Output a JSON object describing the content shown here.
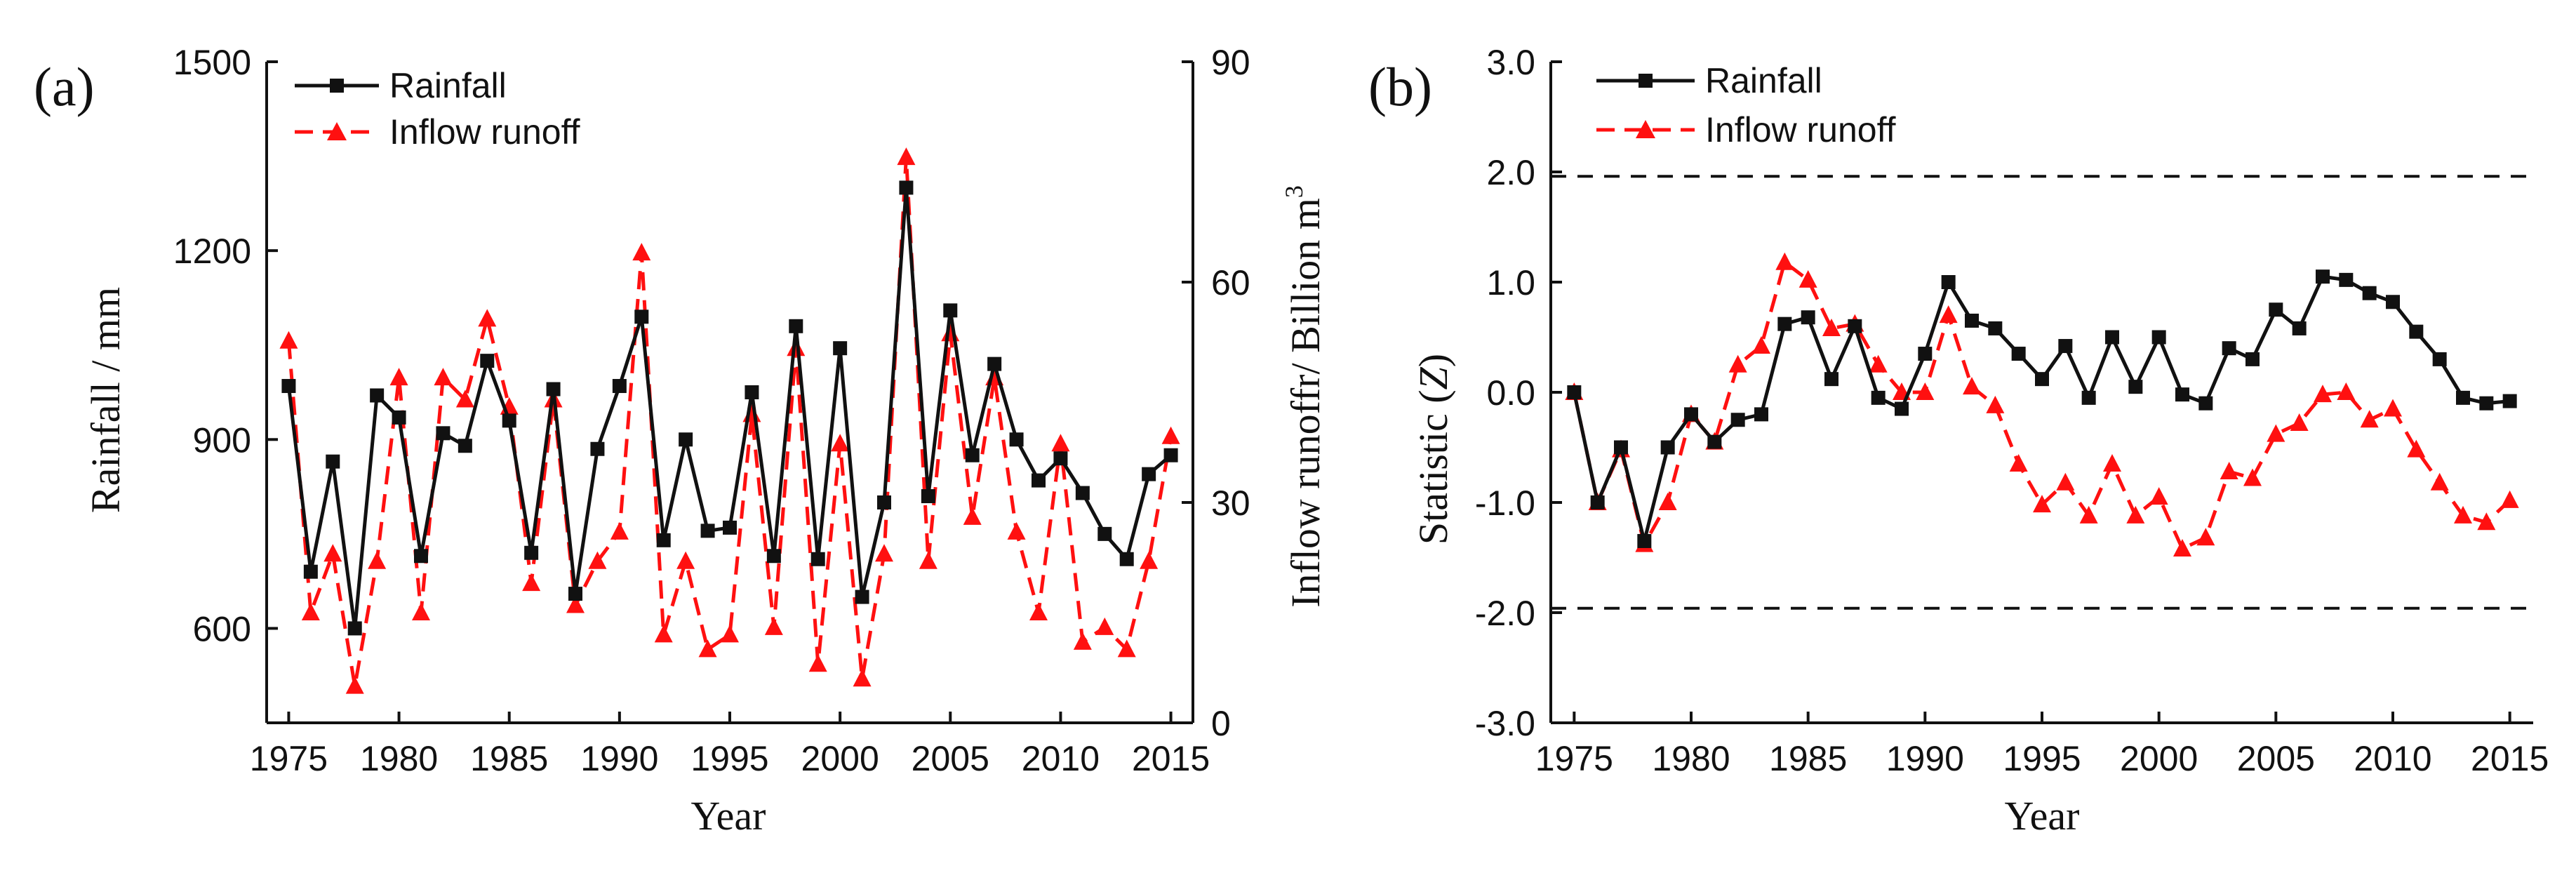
{
  "chart_data": [
    {
      "type": "line",
      "panel_label": "(a)",
      "xlabel": "Year",
      "ylabel": "Rainfall / mm",
      "y2label": "Inflow runoffr/ Billion m",
      "y2label_superscript": "3",
      "xlim": [
        1974,
        2016
      ],
      "ylim": [
        450,
        1500
      ],
      "y2lim": [
        0,
        90
      ],
      "xticks": [
        1975,
        1980,
        1985,
        1990,
        1995,
        2000,
        2005,
        2010,
        2015
      ],
      "yticks": [
        600,
        900,
        1200,
        1500
      ],
      "y2ticks": [
        0,
        30,
        60,
        90
      ],
      "legend": {
        "position": "top-left"
      },
      "grid": false,
      "x": [
        1975,
        1976,
        1977,
        1978,
        1979,
        1980,
        1981,
        1982,
        1983,
        1984,
        1985,
        1986,
        1987,
        1988,
        1989,
        1990,
        1991,
        1992,
        1993,
        1994,
        1995,
        1996,
        1997,
        1998,
        1999,
        2000,
        2001,
        2002,
        2003,
        2004,
        2005,
        2006,
        2007,
        2008,
        2009,
        2010,
        2011,
        2012,
        2013,
        2014,
        2015
      ],
      "series": [
        {
          "name": "Rainfall",
          "axis": "left",
          "color": "#111111",
          "marker": "square",
          "line": "solid",
          "values": [
            985,
            690,
            865,
            600,
            970,
            935,
            715,
            910,
            890,
            1025,
            930,
            720,
            980,
            655,
            885,
            985,
            1095,
            740,
            900,
            755,
            760,
            975,
            715,
            1080,
            710,
            1045,
            650,
            800,
            1300,
            810,
            1105,
            875,
            1020,
            900,
            835,
            870,
            815,
            750,
            710,
            845,
            875
          ]
        },
        {
          "name": "Inflow runoff",
          "axis": "right",
          "color": "#ff1010",
          "marker": "triangle",
          "line": "dashed",
          "values": [
            52,
            15,
            23,
            5,
            22,
            47,
            15,
            47,
            44,
            55,
            43,
            19,
            44,
            16,
            22,
            26,
            64,
            12,
            22,
            10,
            12,
            42,
            13,
            51,
            8,
            38,
            6,
            23,
            77,
            22,
            53,
            28,
            47,
            26,
            15,
            38,
            11,
            13,
            10,
            22,
            39
          ]
        }
      ]
    },
    {
      "type": "line",
      "panel_label": "(b)",
      "xlabel": "Year",
      "ylabel": "Statistic (",
      "ylabel_italic": "Z",
      "ylabel_close": ")",
      "xlim": [
        1974,
        2016
      ],
      "ylim": [
        -3.0,
        3.0
      ],
      "xticks": [
        1975,
        1980,
        1985,
        1990,
        1995,
        2000,
        2005,
        2010,
        2015
      ],
      "yticks": [
        "3.0",
        "2.0",
        "1.0",
        "0.0",
        "-1.0",
        "-2.0",
        "-3.0"
      ],
      "reference_lines": [
        1.96,
        -1.96
      ],
      "legend": {
        "position": "top-left"
      },
      "grid": false,
      "x": [
        1975,
        1976,
        1977,
        1978,
        1979,
        1980,
        1981,
        1982,
        1983,
        1984,
        1985,
        1986,
        1987,
        1988,
        1989,
        1990,
        1991,
        1992,
        1993,
        1994,
        1995,
        1996,
        1997,
        1998,
        1999,
        2000,
        2001,
        2002,
        2003,
        2004,
        2005,
        2006,
        2007,
        2008,
        2009,
        2010,
        2011,
        2012,
        2013,
        2014,
        2015
      ],
      "series": [
        {
          "name": "Rainfall",
          "color": "#111111",
          "marker": "square",
          "line": "solid",
          "values": [
            0.0,
            -1.0,
            -0.5,
            -1.35,
            -0.5,
            -0.2,
            -0.45,
            -0.25,
            -0.2,
            0.62,
            0.68,
            0.12,
            0.6,
            -0.05,
            -0.15,
            0.35,
            1.0,
            0.65,
            0.58,
            0.35,
            0.12,
            0.42,
            -0.05,
            0.5,
            0.05,
            0.5,
            -0.02,
            -0.1,
            0.4,
            0.3,
            0.75,
            0.58,
            1.05,
            1.02,
            0.9,
            0.82,
            0.55,
            0.3,
            -0.05,
            -0.1,
            -0.08
          ]
        },
        {
          "name": "Inflow runoff",
          "color": "#ff1010",
          "marker": "triangle",
          "line": "dashed",
          "values": [
            0.0,
            -1.0,
            -0.52,
            -1.38,
            -1.0,
            -0.2,
            -0.45,
            0.25,
            0.42,
            1.18,
            1.02,
            0.58,
            0.62,
            0.25,
            0.0,
            0.0,
            0.7,
            0.05,
            -0.12,
            -0.65,
            -1.02,
            -0.82,
            -1.12,
            -0.65,
            -1.12,
            -0.95,
            -1.42,
            -1.32,
            -0.72,
            -0.78,
            -0.38,
            -0.28,
            -0.02,
            0.0,
            -0.25,
            -0.15,
            -0.52,
            -0.82,
            -1.12,
            -1.18,
            -0.98
          ]
        }
      ]
    }
  ]
}
